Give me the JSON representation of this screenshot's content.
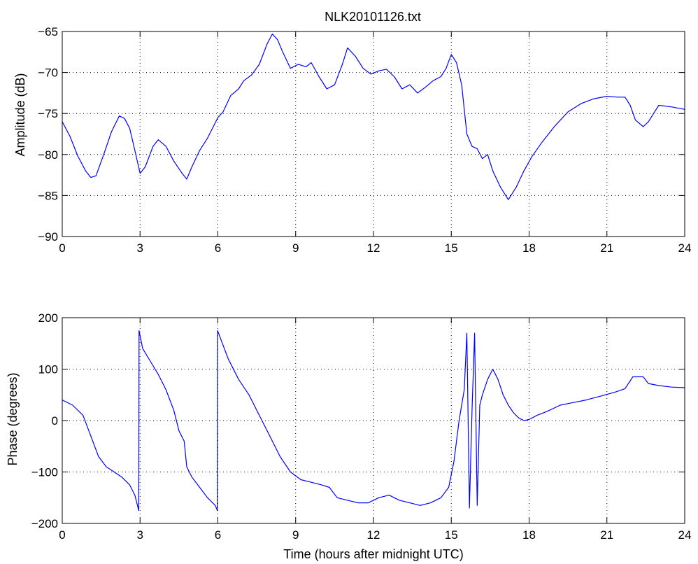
{
  "figure": {
    "title": "NLK20101126.txt",
    "line_color": "#0000ff",
    "grid": "dotted",
    "background": "#ffffff"
  },
  "chart_data": [
    {
      "type": "line",
      "title": "NLK20101126.txt",
      "xlabel": "",
      "ylabel": "Amplitude (dB)",
      "xlim": [
        0,
        24
      ],
      "ylim": [
        -90,
        -65
      ],
      "xticks": [
        0,
        3,
        6,
        9,
        12,
        15,
        18,
        21,
        24
      ],
      "yticks": [
        -90,
        -85,
        -80,
        -75,
        -70,
        -65
      ],
      "grid": true,
      "series": [
        {
          "color": "#0000ff",
          "x": [
            0,
            0.3,
            0.6,
            0.9,
            1.1,
            1.3,
            1.6,
            1.9,
            2.2,
            2.4,
            2.6,
            2.8,
            3.0,
            3.2,
            3.5,
            3.7,
            4.0,
            4.3,
            4.6,
            4.8,
            5.0,
            5.3,
            5.6,
            6.0,
            6.2,
            6.5,
            6.8,
            7.0,
            7.3,
            7.6,
            7.9,
            8.1,
            8.3,
            8.5,
            8.8,
            9.1,
            9.4,
            9.6,
            9.9,
            10.2,
            10.5,
            10.8,
            11.0,
            11.3,
            11.6,
            11.9,
            12.2,
            12.5,
            12.8,
            13.1,
            13.4,
            13.7,
            14.0,
            14.3,
            14.6,
            14.8,
            15.0,
            15.2,
            15.4,
            15.6,
            15.8,
            16.0,
            16.2,
            16.4,
            16.6,
            16.9,
            17.2,
            17.5,
            17.8,
            18.1,
            18.5,
            19.0,
            19.5,
            20.0,
            20.5,
            21.0,
            21.4,
            21.7,
            21.9,
            22.1,
            22.4,
            22.6,
            23.0,
            23.5,
            24.0
          ],
          "y": [
            -76.0,
            -77.8,
            -80.2,
            -82.0,
            -82.8,
            -82.6,
            -80.0,
            -77.2,
            -75.3,
            -75.6,
            -76.8,
            -79.5,
            -82.3,
            -81.5,
            -79.0,
            -78.2,
            -79.0,
            -80.8,
            -82.2,
            -83.0,
            -81.5,
            -79.5,
            -78.0,
            -75.5,
            -74.8,
            -72.8,
            -72.0,
            -71.0,
            -70.3,
            -69.0,
            -66.5,
            -65.3,
            -66.0,
            -67.5,
            -69.5,
            -69.0,
            -69.3,
            -68.8,
            -70.5,
            -72.0,
            -71.5,
            -69.0,
            -67.0,
            -68.0,
            -69.5,
            -70.2,
            -69.8,
            -69.6,
            -70.5,
            -72.0,
            -71.5,
            -72.5,
            -71.8,
            -71.0,
            -70.5,
            -69.5,
            -67.8,
            -68.8,
            -71.5,
            -77.5,
            -79.0,
            -79.3,
            -80.5,
            -80.0,
            -82.0,
            -84.0,
            -85.5,
            -84.0,
            -82.0,
            -80.3,
            -78.5,
            -76.5,
            -74.8,
            -73.8,
            -73.2,
            -72.9,
            -73.0,
            -73.0,
            -74.0,
            -75.8,
            -76.6,
            -76.0,
            -74.0,
            -74.2,
            -74.5
          ]
        }
      ]
    },
    {
      "type": "line",
      "title": "",
      "xlabel": "Time (hours after midnight UTC)",
      "ylabel": "Phase (degrees)",
      "xlim": [
        0,
        24
      ],
      "ylim": [
        -200,
        200
      ],
      "xticks": [
        0,
        3,
        6,
        9,
        12,
        15,
        18,
        21,
        24
      ],
      "yticks": [
        -200,
        -100,
        0,
        100,
        200
      ],
      "grid": true,
      "series": [
        {
          "color": "#0000ff",
          "x": [
            0,
            0.4,
            0.8,
            1.1,
            1.4,
            1.7,
            2.0,
            2.3,
            2.6,
            2.8,
            2.95,
            2.96,
            3.1,
            3.4,
            3.7,
            4.0,
            4.3,
            4.5,
            4.7,
            4.8,
            5.0,
            5.3,
            5.6,
            5.9,
            5.98,
            5.99,
            6.1,
            6.4,
            6.8,
            7.2,
            7.6,
            8.0,
            8.4,
            8.8,
            9.2,
            9.6,
            10.0,
            10.3,
            10.6,
            11.0,
            11.4,
            11.8,
            12.2,
            12.6,
            13.0,
            13.4,
            13.8,
            14.2,
            14.6,
            14.9,
            15.1,
            15.3,
            15.5,
            15.6,
            15.7,
            15.8,
            15.9,
            16.0,
            16.1,
            16.2,
            16.4,
            16.6,
            16.8,
            17.0,
            17.2,
            17.4,
            17.6,
            17.8,
            18.0,
            18.3,
            18.7,
            19.2,
            19.7,
            20.2,
            20.8,
            21.3,
            21.7,
            22.0,
            22.4,
            22.6,
            23.0,
            23.5,
            24.0
          ],
          "y": [
            40,
            30,
            10,
            -30,
            -70,
            -90,
            -100,
            -110,
            -125,
            -145,
            -175,
            175,
            140,
            115,
            90,
            60,
            20,
            -20,
            -40,
            -90,
            -110,
            -130,
            -150,
            -165,
            -175,
            175,
            160,
            120,
            80,
            50,
            10,
            -30,
            -70,
            -100,
            -115,
            -120,
            -125,
            -130,
            -150,
            -155,
            -160,
            -160,
            -150,
            -145,
            -155,
            -160,
            -165,
            -160,
            -150,
            -130,
            -80,
            0,
            60,
            170,
            -170,
            20,
            170,
            -165,
            30,
            50,
            80,
            100,
            80,
            50,
            30,
            15,
            5,
            0,
            2,
            10,
            18,
            30,
            35,
            40,
            48,
            55,
            62,
            85,
            85,
            72,
            68,
            65,
            64
          ]
        }
      ]
    }
  ]
}
